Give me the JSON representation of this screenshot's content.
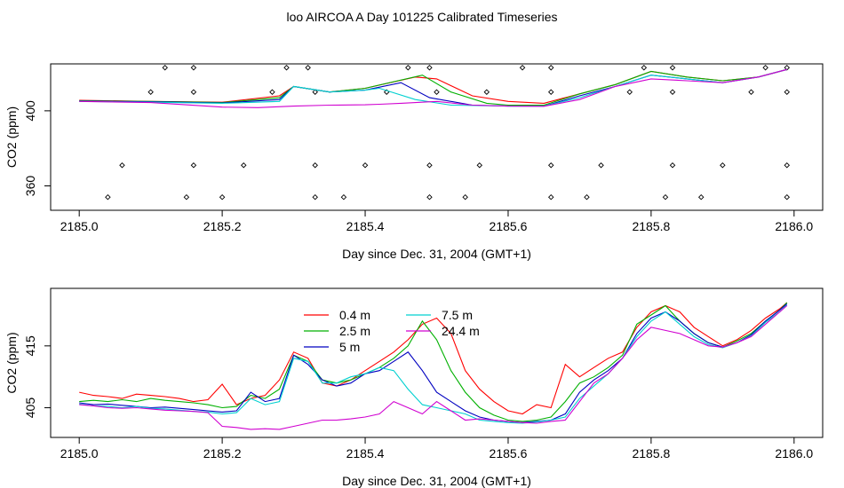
{
  "window": {
    "title": "loo AIRCOA A  Day 101225  Calibrated Timeseries"
  },
  "chart_data": [
    {
      "type": "line",
      "title": "loo AIRCOA A  Day 101225  Calibrated Timeseries",
      "xlabel": "Day since Dec. 31, 2004 (GMT+1)",
      "ylabel": "CO2 (ppm)",
      "xlim": [
        2184.96,
        2186.04
      ],
      "ylim": [
        347,
        425
      ],
      "x_ticks": [
        "2185.0",
        "2185.2",
        "2185.4",
        "2185.6",
        "2185.8",
        "2186.0"
      ],
      "y_ticks": [
        "360",
        "400"
      ],
      "grid": false,
      "series": [
        {
          "color": "#ff0000",
          "x": [
            2185.0,
            2185.1,
            2185.2,
            2185.28,
            2185.3,
            2185.35,
            2185.4,
            2185.47,
            2185.5,
            2185.55,
            2185.6,
            2185.65,
            2185.7,
            2185.75,
            2185.8,
            2185.85,
            2185.9,
            2185.95,
            2185.99
          ],
          "y": [
            405.6,
            405.0,
            404.6,
            408.0,
            413.0,
            410.0,
            412.0,
            418.0,
            417.0,
            408.0,
            405.0,
            404.0,
            409.0,
            414.0,
            421.0,
            418.0,
            416.0,
            418.0,
            422.0
          ]
        },
        {
          "color": "#00b000",
          "x": [
            2185.0,
            2185.1,
            2185.2,
            2185.28,
            2185.3,
            2185.35,
            2185.4,
            2185.48,
            2185.52,
            2185.57,
            2185.6,
            2185.65,
            2185.7,
            2185.75,
            2185.8,
            2185.85,
            2185.9,
            2185.95,
            2185.99
          ],
          "y": [
            405.4,
            405.0,
            404.4,
            407.0,
            413.0,
            410.0,
            412.0,
            419.0,
            410.0,
            404.0,
            403.0,
            403.0,
            409.0,
            414.0,
            421.0,
            418.0,
            416.0,
            418.0,
            422.0
          ]
        },
        {
          "color": "#0000c0",
          "x": [
            2185.0,
            2185.1,
            2185.2,
            2185.28,
            2185.3,
            2185.35,
            2185.4,
            2185.45,
            2185.49,
            2185.55,
            2185.6,
            2185.65,
            2185.7,
            2185.75,
            2185.8,
            2185.85,
            2185.9,
            2185.95,
            2185.99
          ],
          "y": [
            405.2,
            404.8,
            404.2,
            406.0,
            413.0,
            410.0,
            411.0,
            415.0,
            407.0,
            403.0,
            402.5,
            402.5,
            408.0,
            413.0,
            419.0,
            417.0,
            415.0,
            418.0,
            422.0
          ]
        },
        {
          "color": "#00d0d0",
          "x": [
            2185.0,
            2185.1,
            2185.2,
            2185.28,
            2185.3,
            2185.35,
            2185.4,
            2185.42,
            2185.47,
            2185.52,
            2185.6,
            2185.65,
            2185.7,
            2185.75,
            2185.8,
            2185.85,
            2185.9,
            2185.95,
            2185.99
          ],
          "y": [
            405.0,
            404.6,
            404.0,
            405.0,
            413.0,
            410.0,
            411.0,
            412.0,
            406.0,
            403.0,
            402.5,
            402.5,
            407.0,
            413.0,
            419.0,
            417.0,
            415.0,
            418.0,
            422.0
          ]
        },
        {
          "color": "#d000d0",
          "x": [
            2185.0,
            2185.1,
            2185.2,
            2185.25,
            2185.3,
            2185.35,
            2185.4,
            2185.42,
            2185.45,
            2185.5,
            2185.55,
            2185.6,
            2185.65,
            2185.7,
            2185.75,
            2185.8,
            2185.85,
            2185.9,
            2185.95,
            2185.99
          ],
          "y": [
            405.0,
            404.4,
            402.0,
            401.7,
            402.5,
            403.0,
            403.2,
            403.5,
            404.0,
            405.0,
            403.0,
            402.5,
            402.4,
            406.0,
            413.0,
            417.0,
            416.0,
            415.0,
            418.0,
            422.0
          ]
        }
      ],
      "flag_markers": {
        "x": [
          2185.12,
          2185.16,
          2185.29,
          2185.32,
          2185.46,
          2185.49,
          2185.62,
          2185.66,
          2185.79,
          2185.83,
          2185.96,
          2185.99,
          2185.1,
          2185.16,
          2185.27,
          2185.33,
          2185.43,
          2185.5,
          2185.57,
          2185.66,
          2185.77,
          2185.83,
          2185.94,
          2185.99,
          2185.06,
          2185.16,
          2185.23,
          2185.33,
          2185.4,
          2185.49,
          2185.56,
          2185.66,
          2185.73,
          2185.83,
          2185.9,
          2185.99,
          2185.04,
          2185.15,
          2185.2,
          2185.33,
          2185.37,
          2185.49,
          2185.54,
          2185.66,
          2185.71,
          2185.82,
          2185.87,
          2185.99
        ],
        "y": [
          423,
          423,
          423,
          423,
          423,
          423,
          423,
          423,
          423,
          423,
          423,
          423,
          410,
          410,
          410,
          410,
          410,
          410,
          410,
          410,
          410,
          410,
          410,
          410,
          371,
          371,
          371,
          371,
          371,
          371,
          371,
          371,
          371,
          371,
          371,
          371,
          354,
          354,
          354,
          354,
          354,
          354,
          354,
          354,
          354,
          354,
          354,
          354
        ]
      }
    },
    {
      "type": "line",
      "title": "",
      "xlabel": "Day since Dec. 31, 2004 (GMT+1)",
      "ylabel": "CO2 (ppm)",
      "xlim": [
        2184.96,
        2186.04
      ],
      "ylim": [
        400.2,
        424.3
      ],
      "x_ticks": [
        "2185.0",
        "2185.2",
        "2185.4",
        "2185.6",
        "2185.8",
        "2186.0"
      ],
      "y_ticks": [
        "405",
        "415"
      ],
      "grid": false,
      "legend": {
        "placement": "top-center",
        "items": [
          {
            "label": "0.4 m",
            "color": "#ff0000"
          },
          {
            "label": "2.5 m",
            "color": "#00b000"
          },
          {
            "label": "5 m",
            "color": "#0000c0"
          },
          {
            "label": "7.5 m",
            "color": "#00d0d0"
          },
          {
            "label": "24.4 m",
            "color": "#d000d0"
          }
        ]
      },
      "series": [
        {
          "name": "0.4 m",
          "color": "#ff0000",
          "x": [
            2185.0,
            2185.02,
            2185.04,
            2185.06,
            2185.08,
            2185.1,
            2185.12,
            2185.14,
            2185.16,
            2185.18,
            2185.2,
            2185.22,
            2185.24,
            2185.26,
            2185.28,
            2185.3,
            2185.32,
            2185.34,
            2185.36,
            2185.38,
            2185.4,
            2185.42,
            2185.44,
            2185.46,
            2185.48,
            2185.5,
            2185.52,
            2185.54,
            2185.56,
            2185.58,
            2185.6,
            2185.62,
            2185.64,
            2185.66,
            2185.68,
            2185.7,
            2185.72,
            2185.74,
            2185.76,
            2185.78,
            2185.8,
            2185.82,
            2185.84,
            2185.86,
            2185.88,
            2185.9,
            2185.92,
            2185.94,
            2185.96,
            2185.98,
            2185.99
          ],
          "y": [
            407.5,
            407.0,
            406.8,
            406.5,
            407.2,
            407.0,
            406.8,
            406.5,
            406.0,
            406.3,
            408.8,
            405.5,
            406.5,
            407.0,
            409.5,
            414.0,
            413.0,
            409.0,
            408.5,
            409.5,
            411.0,
            412.5,
            414.0,
            416.0,
            418.5,
            419.5,
            417.0,
            411.0,
            408.0,
            406.0,
            404.5,
            404.0,
            405.5,
            405.0,
            412.0,
            410.0,
            411.5,
            413.0,
            414.0,
            418.0,
            420.5,
            421.5,
            420.5,
            418.0,
            416.5,
            415.0,
            416.0,
            417.5,
            419.5,
            421.0,
            422.0
          ]
        },
        {
          "name": "2.5 m",
          "color": "#00b000",
          "x": [
            2185.0,
            2185.02,
            2185.04,
            2185.06,
            2185.08,
            2185.1,
            2185.12,
            2185.14,
            2185.16,
            2185.18,
            2185.2,
            2185.22,
            2185.24,
            2185.26,
            2185.28,
            2185.3,
            2185.32,
            2185.34,
            2185.36,
            2185.38,
            2185.4,
            2185.42,
            2185.44,
            2185.46,
            2185.48,
            2185.5,
            2185.52,
            2185.54,
            2185.56,
            2185.58,
            2185.6,
            2185.62,
            2185.64,
            2185.66,
            2185.68,
            2185.7,
            2185.72,
            2185.74,
            2185.76,
            2185.78,
            2185.8,
            2185.82,
            2185.84,
            2185.86,
            2185.88,
            2185.9,
            2185.92,
            2185.94,
            2185.96,
            2185.98,
            2185.99
          ],
          "y": [
            406.0,
            406.2,
            406.0,
            406.3,
            406.0,
            406.5,
            406.2,
            406.0,
            405.8,
            405.5,
            405.0,
            405.2,
            407.0,
            406.5,
            408.0,
            413.5,
            412.5,
            409.5,
            409.0,
            409.5,
            410.5,
            411.5,
            413.0,
            415.0,
            419.0,
            416.0,
            411.0,
            407.5,
            405.0,
            403.8,
            403.0,
            402.8,
            403.0,
            403.5,
            406.0,
            409.0,
            410.0,
            411.5,
            413.5,
            418.5,
            420.0,
            421.5,
            419.0,
            417.0,
            415.5,
            414.8,
            415.8,
            417.0,
            419.0,
            420.8,
            422.0
          ]
        },
        {
          "name": "5 m",
          "color": "#0000c0",
          "x": [
            2185.0,
            2185.02,
            2185.04,
            2185.06,
            2185.08,
            2185.1,
            2185.12,
            2185.14,
            2185.16,
            2185.18,
            2185.2,
            2185.22,
            2185.24,
            2185.26,
            2185.28,
            2185.3,
            2185.32,
            2185.34,
            2185.36,
            2185.38,
            2185.4,
            2185.42,
            2185.44,
            2185.46,
            2185.48,
            2185.5,
            2185.52,
            2185.54,
            2185.56,
            2185.58,
            2185.6,
            2185.62,
            2185.64,
            2185.66,
            2185.68,
            2185.7,
            2185.72,
            2185.74,
            2185.76,
            2185.78,
            2185.8,
            2185.82,
            2185.84,
            2185.86,
            2185.88,
            2185.9,
            2185.92,
            2185.94,
            2185.96,
            2185.98,
            2185.99
          ],
          "y": [
            405.8,
            405.5,
            405.6,
            405.4,
            405.2,
            405.0,
            405.1,
            404.9,
            404.7,
            404.5,
            404.3,
            404.5,
            407.5,
            406.0,
            406.5,
            413.5,
            412.0,
            409.5,
            408.5,
            409.0,
            410.5,
            411.0,
            412.5,
            414.0,
            411.0,
            407.5,
            406.0,
            404.5,
            403.5,
            403.0,
            402.8,
            402.6,
            402.8,
            403.0,
            404.0,
            407.5,
            409.5,
            411.0,
            413.0,
            417.0,
            419.5,
            420.5,
            419.0,
            417.0,
            415.5,
            414.8,
            415.5,
            416.8,
            419.0,
            420.8,
            421.8
          ]
        },
        {
          "name": "7.5 m",
          "color": "#00d0d0",
          "x": [
            2185.0,
            2185.02,
            2185.04,
            2185.06,
            2185.08,
            2185.1,
            2185.12,
            2185.14,
            2185.16,
            2185.18,
            2185.2,
            2185.22,
            2185.24,
            2185.26,
            2185.28,
            2185.3,
            2185.32,
            2185.34,
            2185.36,
            2185.38,
            2185.4,
            2185.42,
            2185.44,
            2185.46,
            2185.48,
            2185.5,
            2185.52,
            2185.54,
            2185.56,
            2185.58,
            2185.6,
            2185.62,
            2185.64,
            2185.66,
            2185.68,
            2185.7,
            2185.72,
            2185.74,
            2185.76,
            2185.78,
            2185.8,
            2185.82,
            2185.84,
            2185.86,
            2185.88,
            2185.9,
            2185.92,
            2185.94,
            2185.96,
            2185.98,
            2185.99
          ],
          "y": [
            405.6,
            405.3,
            405.2,
            405.0,
            405.2,
            404.9,
            404.8,
            404.6,
            404.4,
            404.3,
            404.0,
            404.2,
            406.5,
            405.5,
            406.0,
            413.0,
            412.5,
            409.0,
            409.0,
            410.0,
            410.5,
            411.5,
            411.0,
            408.0,
            405.5,
            405.0,
            404.5,
            404.0,
            403.0,
            402.8,
            402.6,
            402.5,
            402.7,
            403.0,
            403.5,
            406.5,
            408.5,
            410.5,
            413.0,
            416.5,
            419.0,
            420.5,
            418.5,
            416.5,
            415.2,
            414.7,
            415.5,
            416.6,
            418.8,
            420.5,
            421.6
          ]
        },
        {
          "name": "24.4 m",
          "color": "#d000d0",
          "x": [
            2185.0,
            2185.02,
            2185.04,
            2185.06,
            2185.08,
            2185.1,
            2185.12,
            2185.14,
            2185.16,
            2185.18,
            2185.2,
            2185.22,
            2185.24,
            2185.26,
            2185.28,
            2185.3,
            2185.32,
            2185.34,
            2185.36,
            2185.38,
            2185.4,
            2185.42,
            2185.44,
            2185.46,
            2185.48,
            2185.5,
            2185.52,
            2185.54,
            2185.56,
            2185.58,
            2185.6,
            2185.62,
            2185.64,
            2185.66,
            2185.68,
            2185.7,
            2185.72,
            2185.74,
            2185.76,
            2185.78,
            2185.8,
            2185.82,
            2185.84,
            2185.86,
            2185.88,
            2185.9,
            2185.92,
            2185.94,
            2185.96,
            2185.98,
            2185.99
          ],
          "y": [
            405.5,
            405.3,
            405.0,
            404.9,
            405.0,
            404.8,
            404.6,
            404.5,
            404.4,
            404.2,
            402.0,
            401.8,
            401.5,
            401.6,
            401.5,
            402.0,
            402.5,
            403.0,
            403.0,
            403.2,
            403.5,
            404.0,
            406.0,
            405.0,
            404.0,
            406.0,
            404.5,
            403.0,
            403.2,
            403.0,
            402.8,
            402.6,
            402.5,
            402.8,
            403.0,
            406.0,
            409.0,
            410.5,
            413.0,
            416.0,
            418.0,
            417.5,
            417.0,
            416.0,
            415.0,
            414.8,
            415.5,
            416.5,
            418.5,
            420.5,
            421.5
          ]
        }
      ]
    }
  ]
}
